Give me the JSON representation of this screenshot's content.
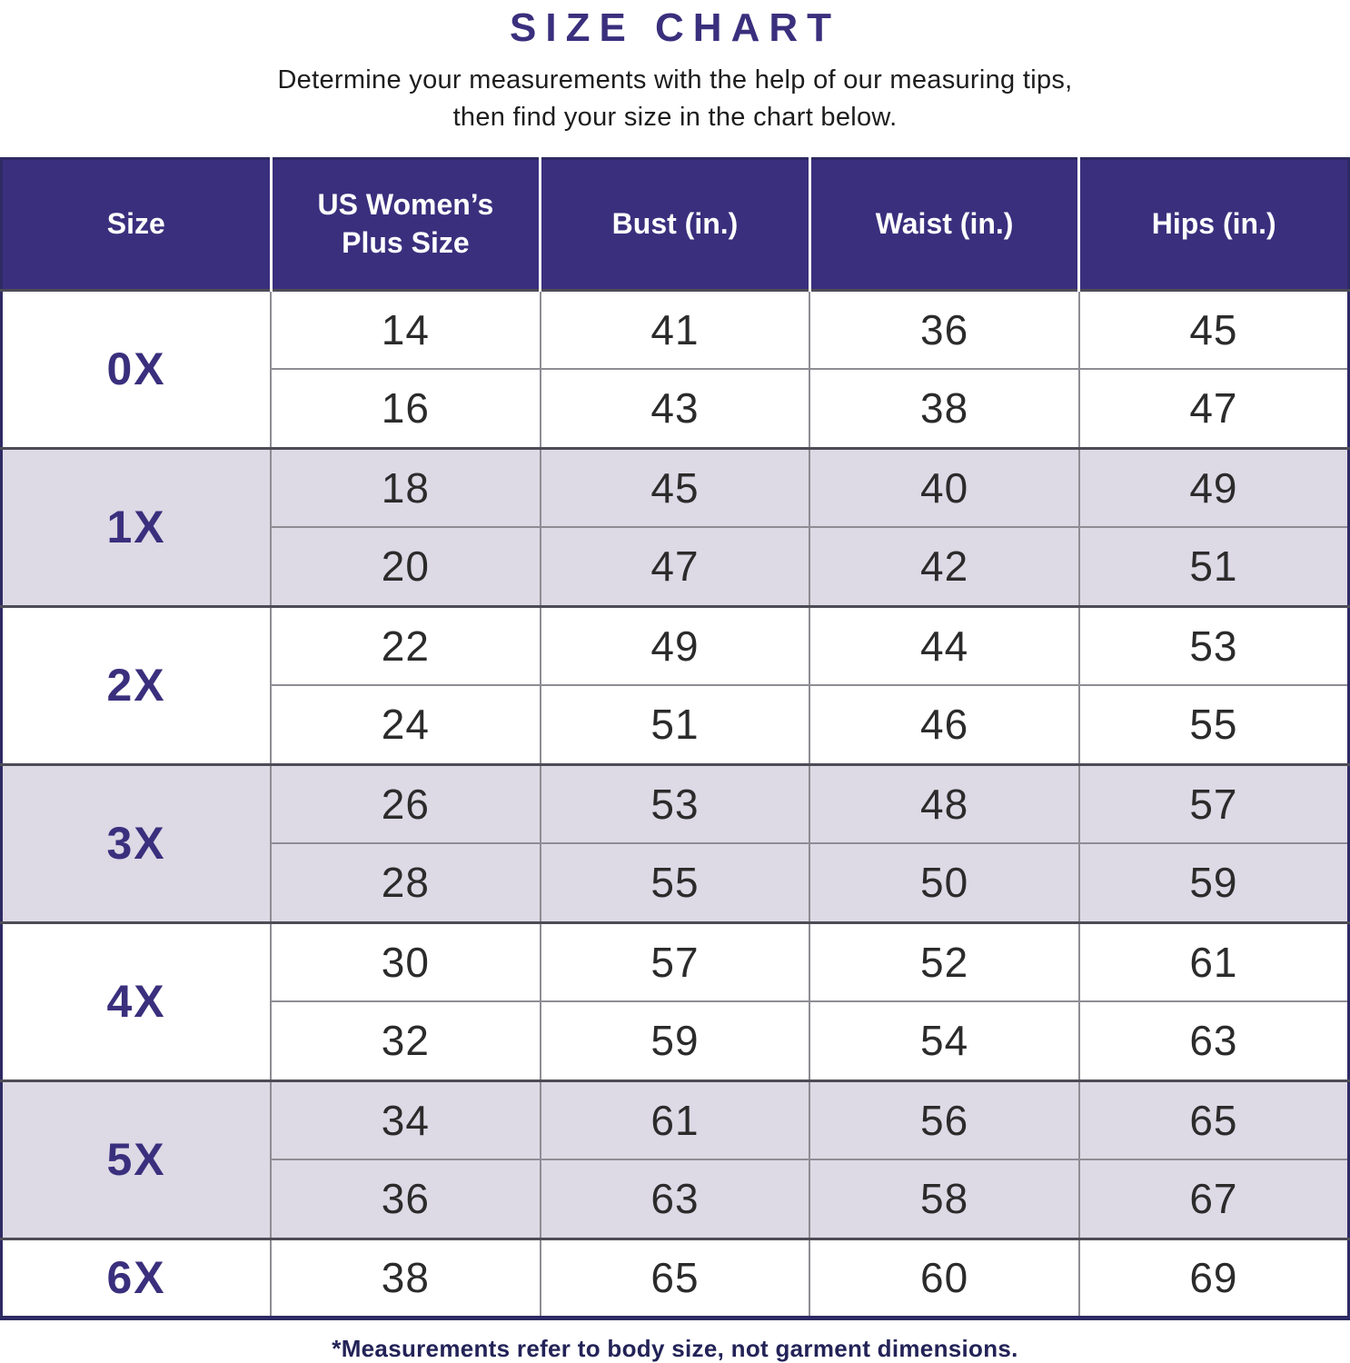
{
  "title": "SIZE CHART",
  "subtitle_line1": "Determine your measurements with the help of our measuring tips,",
  "subtitle_line2": "then find your size in the chart below.",
  "footnote": "*Measurements refer to body size, not garment dimensions.",
  "colors": {
    "header_bg": "#3a2f7d",
    "accent": "#3a2f7d",
    "row_alt_bg": "#ddd9e5",
    "row_bg": "#ffffff",
    "cell_text": "#2b2b2b",
    "footnote_text": "#232358",
    "outer_border": "#2e2a63",
    "group_border": "#4d4c56",
    "inner_border": "#8e8d94"
  },
  "chart_data": {
    "type": "table",
    "title": "SIZE CHART",
    "columns": [
      "Size",
      "US Women’s Plus Size",
      "Bust (in.)",
      "Waist (in.)",
      "Hips (in.)"
    ],
    "groups": [
      {
        "size": "0X",
        "shaded": false,
        "rows": [
          [
            14,
            41,
            36,
            45
          ],
          [
            16,
            43,
            38,
            47
          ]
        ]
      },
      {
        "size": "1X",
        "shaded": true,
        "rows": [
          [
            18,
            45,
            40,
            49
          ],
          [
            20,
            47,
            42,
            51
          ]
        ]
      },
      {
        "size": "2X",
        "shaded": false,
        "rows": [
          [
            22,
            49,
            44,
            53
          ],
          [
            24,
            51,
            46,
            55
          ]
        ]
      },
      {
        "size": "3X",
        "shaded": true,
        "rows": [
          [
            26,
            53,
            48,
            57
          ],
          [
            28,
            55,
            50,
            59
          ]
        ]
      },
      {
        "size": "4X",
        "shaded": false,
        "rows": [
          [
            30,
            57,
            52,
            61
          ],
          [
            32,
            59,
            54,
            63
          ]
        ]
      },
      {
        "size": "5X",
        "shaded": true,
        "rows": [
          [
            34,
            61,
            56,
            65
          ],
          [
            36,
            63,
            58,
            67
          ]
        ]
      },
      {
        "size": "6X",
        "shaded": false,
        "rows": [
          [
            38,
            65,
            60,
            69
          ]
        ]
      }
    ]
  }
}
